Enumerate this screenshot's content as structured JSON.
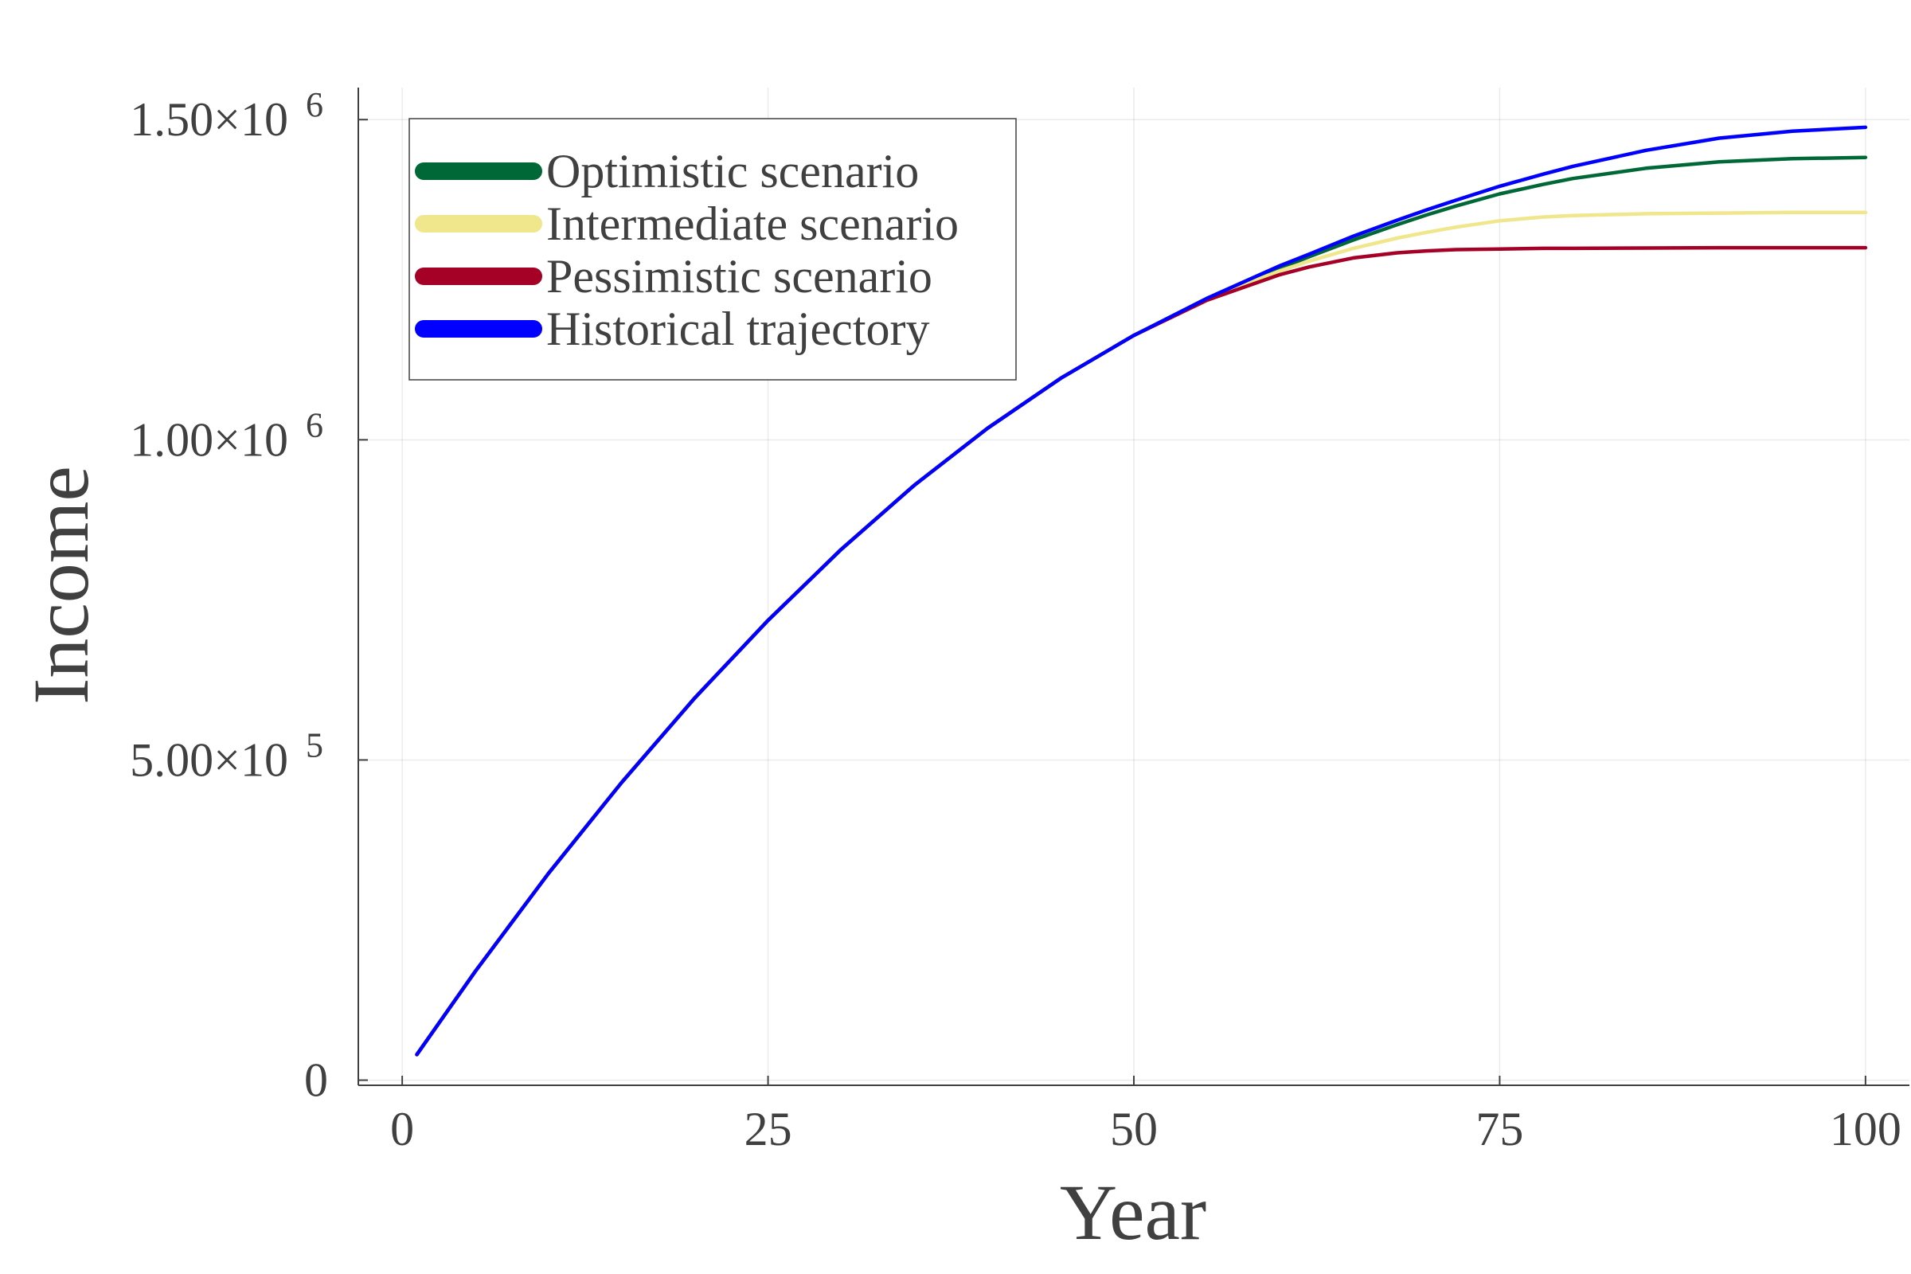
{
  "chart_data": {
    "type": "line",
    "title": "",
    "xlabel": "Year",
    "ylabel": "Income",
    "xlim": [
      -3,
      103
    ],
    "ylim": [
      -8000,
      1550000
    ],
    "grid": true,
    "legend_position": "top-left",
    "x_ticks": [
      {
        "value": 0,
        "label": "0"
      },
      {
        "value": 25,
        "label": "25"
      },
      {
        "value": 50,
        "label": "50"
      },
      {
        "value": 75,
        "label": "75"
      },
      {
        "value": 100,
        "label": "100"
      }
    ],
    "y_ticks": [
      {
        "value": 0,
        "mantissa": "0",
        "exponent": ""
      },
      {
        "value": 500000,
        "mantissa": "5.00×10",
        "exponent": "5"
      },
      {
        "value": 1000000,
        "mantissa": "1.00×10",
        "exponent": "6"
      },
      {
        "value": 1500000,
        "mantissa": "1.50×10",
        "exponent": "6"
      }
    ],
    "x": [
      1,
      5,
      10,
      15,
      20,
      25,
      30,
      35,
      40,
      45,
      50,
      55,
      60,
      62,
      65,
      68,
      70,
      72,
      75,
      78,
      80,
      85,
      90,
      95,
      100
    ],
    "series": [
      {
        "name": "Optimistic scenario",
        "color": "#006837",
        "values": [
          40000,
          170000,
          323000,
          465000,
          597000,
          718000,
          829000,
          929000,
          1018000,
          1096000,
          1163000,
          1220000,
          1268000,
          1286000,
          1312000,
          1336000,
          1351000,
          1365000,
          1384000,
          1399000,
          1408000,
          1424000,
          1434000,
          1439000,
          1441000
        ]
      },
      {
        "name": "Intermediate scenario",
        "color": "#f0e68c",
        "values": [
          40000,
          170000,
          323000,
          465000,
          597000,
          718000,
          829000,
          929000,
          1018000,
          1096000,
          1163000,
          1220000,
          1264000,
          1279000,
          1299000,
          1315000,
          1324000,
          1332000,
          1342000,
          1348000,
          1350000,
          1353000,
          1354000,
          1355000,
          1355000
        ]
      },
      {
        "name": "Pessimistic scenario",
        "color": "#a50026",
        "values": [
          40000,
          170000,
          323000,
          465000,
          597000,
          718000,
          829000,
          929000,
          1018000,
          1096000,
          1163000,
          1218000,
          1258000,
          1270000,
          1284000,
          1292000,
          1295000,
          1297000,
          1298000,
          1299000,
          1299000,
          1299500,
          1300000,
          1300000,
          1300000
        ]
      },
      {
        "name": "Historical trajectory",
        "color": "#0000ff",
        "values": [
          40000,
          170000,
          323000,
          465000,
          597000,
          718000,
          829000,
          929000,
          1018000,
          1096000,
          1163000,
          1221000,
          1272000,
          1290000,
          1318000,
          1343000,
          1359000,
          1374000,
          1396000,
          1415000,
          1427000,
          1452000,
          1471000,
          1482000,
          1488000
        ]
      }
    ]
  }
}
